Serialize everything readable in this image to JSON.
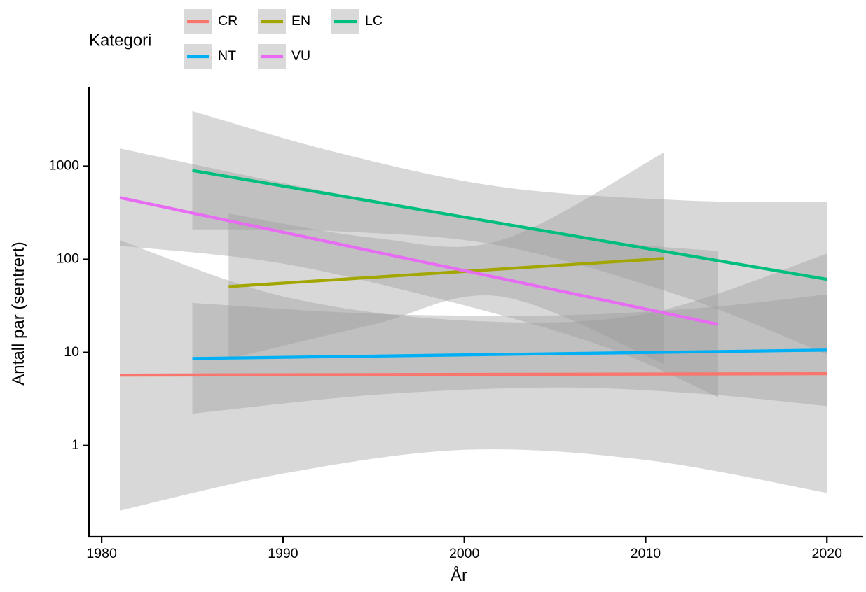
{
  "chart_data": {
    "type": "line",
    "xlabel": "År",
    "ylabel": "Antall par (sentrert)",
    "x_scale": "linear",
    "y_scale": "log10",
    "xlim": [
      1979.3,
      2022.0
    ],
    "ylim": [
      0.105,
      7000
    ],
    "x_ticks": [
      1980,
      1990,
      2000,
      2010,
      2020
    ],
    "y_ticks": [
      1,
      10,
      100,
      1000
    ],
    "grid": false,
    "legend": {
      "title": "Kategori",
      "position": "top",
      "entries": [
        "CR",
        "EN",
        "LC",
        "NT",
        "VU"
      ]
    },
    "series": [
      {
        "name": "CR",
        "color": "#F8766D",
        "x": [
          1981,
          2020
        ],
        "y": [
          5.7,
          5.9
        ],
        "ci_upper": [
          [
            1981,
            160
          ],
          [
            1990,
            40
          ],
          [
            2000,
            22
          ],
          [
            2010,
            26
          ],
          [
            2020,
            115
          ]
        ],
        "ci_lower": [
          [
            1981,
            0.2
          ],
          [
            1990,
            0.5
          ],
          [
            2000,
            0.9
          ],
          [
            2010,
            0.7
          ],
          [
            2020,
            0.31
          ]
        ]
      },
      {
        "name": "EN",
        "color": "#A3A500",
        "x": [
          1987,
          2011
        ],
        "y": [
          51,
          102
        ],
        "ci_upper": [
          [
            1987,
            310
          ],
          [
            1995,
            170
          ],
          [
            2002,
            160
          ],
          [
            2011,
            1400
          ]
        ],
        "ci_lower": [
          [
            1987,
            8.5
          ],
          [
            1995,
            20
          ],
          [
            2002,
            40
          ],
          [
            2011,
            7.5
          ]
        ]
      },
      {
        "name": "LC",
        "color": "#00BF7D",
        "x": [
          1985,
          2020
        ],
        "y": [
          900,
          61
        ],
        "ci_upper": [
          [
            1985,
            3900
          ],
          [
            1993,
            1400
          ],
          [
            2002,
            600
          ],
          [
            2012,
            430
          ],
          [
            2020,
            410
          ]
        ],
        "ci_lower": [
          [
            1985,
            210
          ],
          [
            1993,
            200
          ],
          [
            2002,
            140
          ],
          [
            2012,
            40
          ],
          [
            2020,
            9.5
          ]
        ]
      },
      {
        "name": "NT",
        "color": "#00B0F6",
        "x": [
          1985,
          2020
        ],
        "y": [
          8.6,
          10.6
        ],
        "ci_upper": [
          [
            1985,
            34
          ],
          [
            1995,
            26
          ],
          [
            2005,
            25
          ],
          [
            2013,
            30
          ],
          [
            2020,
            42
          ]
        ],
        "ci_lower": [
          [
            1985,
            2.2
          ],
          [
            1995,
            3.5
          ],
          [
            2005,
            4.2
          ],
          [
            2013,
            3.6
          ],
          [
            2020,
            2.65
          ]
        ]
      },
      {
        "name": "VU",
        "color": "#E76BF3",
        "x": [
          1981,
          2014
        ],
        "y": [
          460,
          20
        ],
        "ci_upper": [
          [
            1981,
            1550
          ],
          [
            1990,
            660
          ],
          [
            2000,
            280
          ],
          [
            2008,
            155
          ],
          [
            2014,
            123
          ]
        ],
        "ci_lower": [
          [
            1981,
            140
          ],
          [
            1990,
            90
          ],
          [
            2000,
            32
          ],
          [
            2008,
            11
          ],
          [
            2014,
            3.3
          ]
        ]
      }
    ]
  }
}
